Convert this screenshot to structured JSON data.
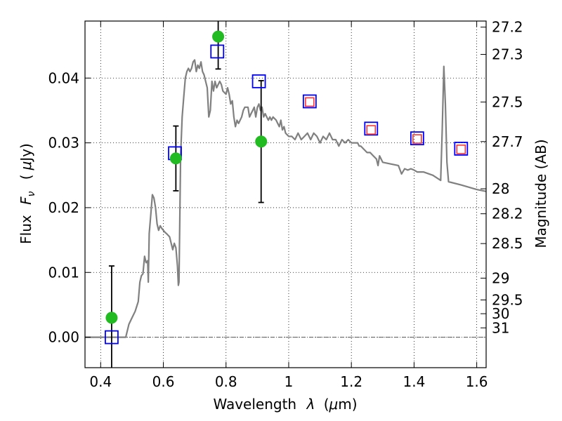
{
  "chart_data": {
    "type": "scatter",
    "xlabel": {
      "prefix": "Wavelength",
      "symbol": "λ",
      "unit_open": "(",
      "unit_mu": "μ",
      "unit_rest": "m)"
    },
    "ylabel": {
      "prefix": "Flux",
      "symbol": "F",
      "subscript": "ν",
      "unit_open": "(",
      "unit_mu": "μ",
      "unit_rest": "Jy)"
    },
    "y2label": "Magnitude (AB)",
    "xlim": [
      0.35,
      1.63
    ],
    "ylim": [
      -0.0047,
      0.0488
    ],
    "xticks": [
      {
        "value": 0.4,
        "label": "0.4"
      },
      {
        "value": 0.6,
        "label": "0.6"
      },
      {
        "value": 0.8,
        "label": "0.8"
      },
      {
        "value": 1.0,
        "label": "1"
      },
      {
        "value": 1.2,
        "label": "1.2"
      },
      {
        "value": 1.4,
        "label": "1.4"
      },
      {
        "value": 1.6,
        "label": "1.6"
      }
    ],
    "yticks": [
      {
        "value": 0.0,
        "label": "0.00"
      },
      {
        "value": 0.01,
        "label": "0.01"
      },
      {
        "value": 0.02,
        "label": "0.02"
      },
      {
        "value": 0.03,
        "label": "0.03"
      },
      {
        "value": 0.04,
        "label": "0.04"
      }
    ],
    "y2ticks": [
      {
        "mag": 27.2,
        "label": "27.2"
      },
      {
        "mag": 27.3,
        "label": "27.3"
      },
      {
        "mag": 27.5,
        "label": "27.5"
      },
      {
        "mag": 27.7,
        "label": "27.7"
      },
      {
        "mag": 28.0,
        "label": "28"
      },
      {
        "mag": 28.2,
        "label": "28.2"
      },
      {
        "mag": 28.5,
        "label": "28.5"
      },
      {
        "mag": 29.0,
        "label": "29"
      },
      {
        "mag": 29.5,
        "label": "29.5"
      },
      {
        "mag": 30.0,
        "label": "30"
      },
      {
        "mag": 31.0,
        "label": "31"
      }
    ],
    "grid": true,
    "colors": {
      "template": "#808080",
      "observed": "#22bb22",
      "model": "#0000ff",
      "predicted": "#ff3333",
      "errorbar": "#000000"
    },
    "template_spectrum": [
      [
        0.35,
        0.0
      ],
      [
        0.48,
        0.0
      ],
      [
        0.49,
        0.002
      ],
      [
        0.5,
        0.003
      ],
      [
        0.51,
        0.004
      ],
      [
        0.52,
        0.0055
      ],
      [
        0.525,
        0.0085
      ],
      [
        0.53,
        0.0095
      ],
      [
        0.535,
        0.0098
      ],
      [
        0.54,
        0.0125
      ],
      [
        0.545,
        0.0115
      ],
      [
        0.55,
        0.0118
      ],
      [
        0.552,
        0.0085
      ],
      [
        0.555,
        0.016
      ],
      [
        0.56,
        0.019
      ],
      [
        0.565,
        0.022
      ],
      [
        0.57,
        0.0215
      ],
      [
        0.575,
        0.02
      ],
      [
        0.58,
        0.0175
      ],
      [
        0.585,
        0.0165
      ],
      [
        0.59,
        0.0172
      ],
      [
        0.595,
        0.0168
      ],
      [
        0.6,
        0.0165
      ],
      [
        0.605,
        0.0162
      ],
      [
        0.61,
        0.016
      ],
      [
        0.62,
        0.0155
      ],
      [
        0.63,
        0.0135
      ],
      [
        0.635,
        0.0145
      ],
      [
        0.64,
        0.0138
      ],
      [
        0.645,
        0.011
      ],
      [
        0.648,
        0.008
      ],
      [
        0.65,
        0.0085
      ],
      [
        0.655,
        0.028
      ],
      [
        0.66,
        0.034
      ],
      [
        0.665,
        0.037
      ],
      [
        0.67,
        0.04
      ],
      [
        0.675,
        0.041
      ],
      [
        0.68,
        0.0415
      ],
      [
        0.685,
        0.041
      ],
      [
        0.69,
        0.0415
      ],
      [
        0.695,
        0.0425
      ],
      [
        0.7,
        0.0428
      ],
      [
        0.705,
        0.041
      ],
      [
        0.71,
        0.042
      ],
      [
        0.715,
        0.0415
      ],
      [
        0.72,
        0.0425
      ],
      [
        0.725,
        0.041
      ],
      [
        0.73,
        0.0405
      ],
      [
        0.735,
        0.0395
      ],
      [
        0.74,
        0.0385
      ],
      [
        0.745,
        0.034
      ],
      [
        0.75,
        0.035
      ],
      [
        0.755,
        0.0395
      ],
      [
        0.76,
        0.038
      ],
      [
        0.765,
        0.0395
      ],
      [
        0.77,
        0.0385
      ],
      [
        0.775,
        0.039
      ],
      [
        0.78,
        0.0395
      ],
      [
        0.785,
        0.039
      ],
      [
        0.79,
        0.038
      ],
      [
        0.8,
        0.0375
      ],
      [
        0.805,
        0.0385
      ],
      [
        0.81,
        0.0375
      ],
      [
        0.815,
        0.036
      ],
      [
        0.82,
        0.0365
      ],
      [
        0.825,
        0.034
      ],
      [
        0.83,
        0.0325
      ],
      [
        0.835,
        0.0335
      ],
      [
        0.84,
        0.033
      ],
      [
        0.845,
        0.0335
      ],
      [
        0.85,
        0.034
      ],
      [
        0.855,
        0.035
      ],
      [
        0.86,
        0.0355
      ],
      [
        0.87,
        0.0355
      ],
      [
        0.875,
        0.034
      ],
      [
        0.88,
        0.0345
      ],
      [
        0.885,
        0.035
      ],
      [
        0.89,
        0.0355
      ],
      [
        0.895,
        0.034
      ],
      [
        0.9,
        0.0355
      ],
      [
        0.905,
        0.036
      ],
      [
        0.91,
        0.035
      ],
      [
        0.915,
        0.0355
      ],
      [
        0.92,
        0.034
      ],
      [
        0.925,
        0.0345
      ],
      [
        0.93,
        0.034
      ],
      [
        0.935,
        0.0335
      ],
      [
        0.94,
        0.034
      ],
      [
        0.945,
        0.0335
      ],
      [
        0.95,
        0.034
      ],
      [
        0.96,
        0.0335
      ],
      [
        0.965,
        0.033
      ],
      [
        0.97,
        0.0325
      ],
      [
        0.975,
        0.0335
      ],
      [
        0.98,
        0.032
      ],
      [
        0.985,
        0.0325
      ],
      [
        0.99,
        0.0315
      ],
      [
        1.0,
        0.031
      ],
      [
        1.01,
        0.031
      ],
      [
        1.02,
        0.0305
      ],
      [
        1.03,
        0.0315
      ],
      [
        1.04,
        0.0305
      ],
      [
        1.05,
        0.031
      ],
      [
        1.06,
        0.0315
      ],
      [
        1.07,
        0.0305
      ],
      [
        1.08,
        0.0315
      ],
      [
        1.09,
        0.031
      ],
      [
        1.1,
        0.03
      ],
      [
        1.11,
        0.031
      ],
      [
        1.12,
        0.0305
      ],
      [
        1.13,
        0.0315
      ],
      [
        1.14,
        0.0305
      ],
      [
        1.15,
        0.0305
      ],
      [
        1.16,
        0.0295
      ],
      [
        1.17,
        0.0305
      ],
      [
        1.18,
        0.03
      ],
      [
        1.19,
        0.0305
      ],
      [
        1.2,
        0.03
      ],
      [
        1.22,
        0.03
      ],
      [
        1.225,
        0.0295
      ],
      [
        1.23,
        0.0295
      ],
      [
        1.24,
        0.029
      ],
      [
        1.25,
        0.0285
      ],
      [
        1.26,
        0.0285
      ],
      [
        1.27,
        0.028
      ],
      [
        1.28,
        0.0275
      ],
      [
        1.285,
        0.0265
      ],
      [
        1.29,
        0.028
      ],
      [
        1.295,
        0.0275
      ],
      [
        1.3,
        0.027
      ],
      [
        1.35,
        0.0265
      ],
      [
        1.36,
        0.0252
      ],
      [
        1.37,
        0.026
      ],
      [
        1.38,
        0.0258
      ],
      [
        1.39,
        0.026
      ],
      [
        1.4,
        0.0258
      ],
      [
        1.41,
        0.0255
      ],
      [
        1.43,
        0.0255
      ],
      [
        1.46,
        0.025
      ],
      [
        1.485,
        0.0242
      ],
      [
        1.49,
        0.032
      ],
      [
        1.495,
        0.0418
      ],
      [
        1.5,
        0.036
      ],
      [
        1.505,
        0.027
      ],
      [
        1.51,
        0.024
      ],
      [
        1.55,
        0.0235
      ],
      [
        1.6,
        0.0228
      ],
      [
        1.63,
        0.0225
      ]
    ],
    "observed": [
      {
        "x": 0.435,
        "y": 0.003,
        "err": 0.008
      },
      {
        "x": 0.64,
        "y": 0.0276,
        "err": 0.005
      },
      {
        "x": 0.775,
        "y": 0.0464,
        "err": 0.005
      },
      {
        "x": 0.912,
        "y": 0.0302,
        "err": 0.0094
      }
    ],
    "model": [
      {
        "x": 0.435,
        "y": 0.0
      },
      {
        "x": 0.637,
        "y": 0.0284
      },
      {
        "x": 0.772,
        "y": 0.0441
      },
      {
        "x": 0.905,
        "y": 0.0395
      },
      {
        "x": 1.067,
        "y": 0.0364
      },
      {
        "x": 1.263,
        "y": 0.0322
      },
      {
        "x": 1.41,
        "y": 0.0307
      },
      {
        "x": 1.55,
        "y": 0.0291
      }
    ],
    "predicted": [
      {
        "x": 1.067,
        "y": 0.0363
      },
      {
        "x": 1.263,
        "y": 0.032
      },
      {
        "x": 1.41,
        "y": 0.0306
      },
      {
        "x": 1.55,
        "y": 0.029
      }
    ]
  }
}
